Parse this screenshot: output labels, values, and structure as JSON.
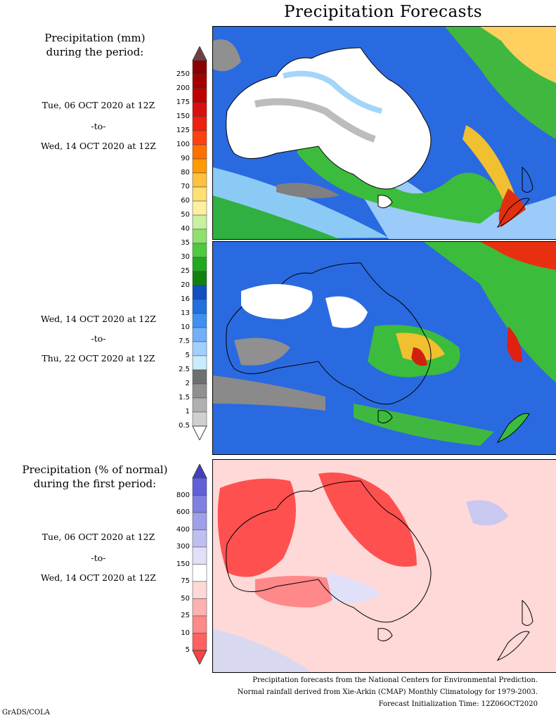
{
  "title": "Precipitation Forecasts",
  "panel1": {
    "heading": [
      "Precipitation (mm)",
      "during the period:"
    ],
    "start": "Tue, 06 OCT 2020 at 12Z",
    "sep": "-to-",
    "end": "Wed, 14 OCT 2020 at 12Z"
  },
  "panel2": {
    "start": "Wed, 14 OCT 2020 at 12Z",
    "sep": "-to-",
    "end": "Thu, 22 OCT 2020 at 12Z"
  },
  "panel3": {
    "heading": [
      "Precipitation (% of normal)",
      "during the first period:"
    ],
    "start": "Tue, 06 OCT 2020 at 12Z",
    "sep": "-to-",
    "end": "Wed, 14 OCT 2020 at 12Z"
  },
  "legend_mm": {
    "ticks": [
      "250",
      "200",
      "175",
      "150",
      "125",
      "100",
      "90",
      "80",
      "70",
      "60",
      "50",
      "40",
      "35",
      "30",
      "25",
      "20",
      "16",
      "13",
      "10",
      "7.5",
      "5",
      "2.5",
      "2",
      "1.5",
      "1",
      "0.5"
    ],
    "colors": [
      "#8b0000",
      "#a50000",
      "#c00000",
      "#d81010",
      "#f02010",
      "#ff4010",
      "#ff7000",
      "#ff9a00",
      "#ffc040",
      "#ffe070",
      "#fff0a0",
      "#c8f0a0",
      "#90e070",
      "#50c840",
      "#20a820",
      "#108010",
      "#1050c0",
      "#2070e0",
      "#4090f0",
      "#70b0f8",
      "#a0d0ff",
      "#c8ecff",
      "#707070",
      "#909090",
      "#b0b0b0",
      "#d0d0d0"
    ],
    "top_color": "#704040",
    "bottom_color": "#ffffff"
  },
  "legend_pct": {
    "ticks": [
      "800",
      "600",
      "400",
      "300",
      "150",
      "75",
      "50",
      "25",
      "10",
      "5"
    ],
    "colors": [
      "#6060d8",
      "#8080e0",
      "#a0a0e8",
      "#c0c0f0",
      "#e0e0f8",
      "#ffffff",
      "#ffd8d8",
      "#ffb0b0",
      "#ff8888",
      "#ff6060"
    ],
    "top_color": "#4040c0",
    "bottom_color": "#ff4040"
  },
  "footer": [
    "Precipitation forecasts from the National Centers for Environmental Prediction.",
    "Normal rainfall derived from Xie-Arkin (CMAP) Monthly Climatology for 1979-2003.",
    "Forecast Initialization Time: 12Z06OCT2020"
  ],
  "credit": "GrADS/COLA"
}
